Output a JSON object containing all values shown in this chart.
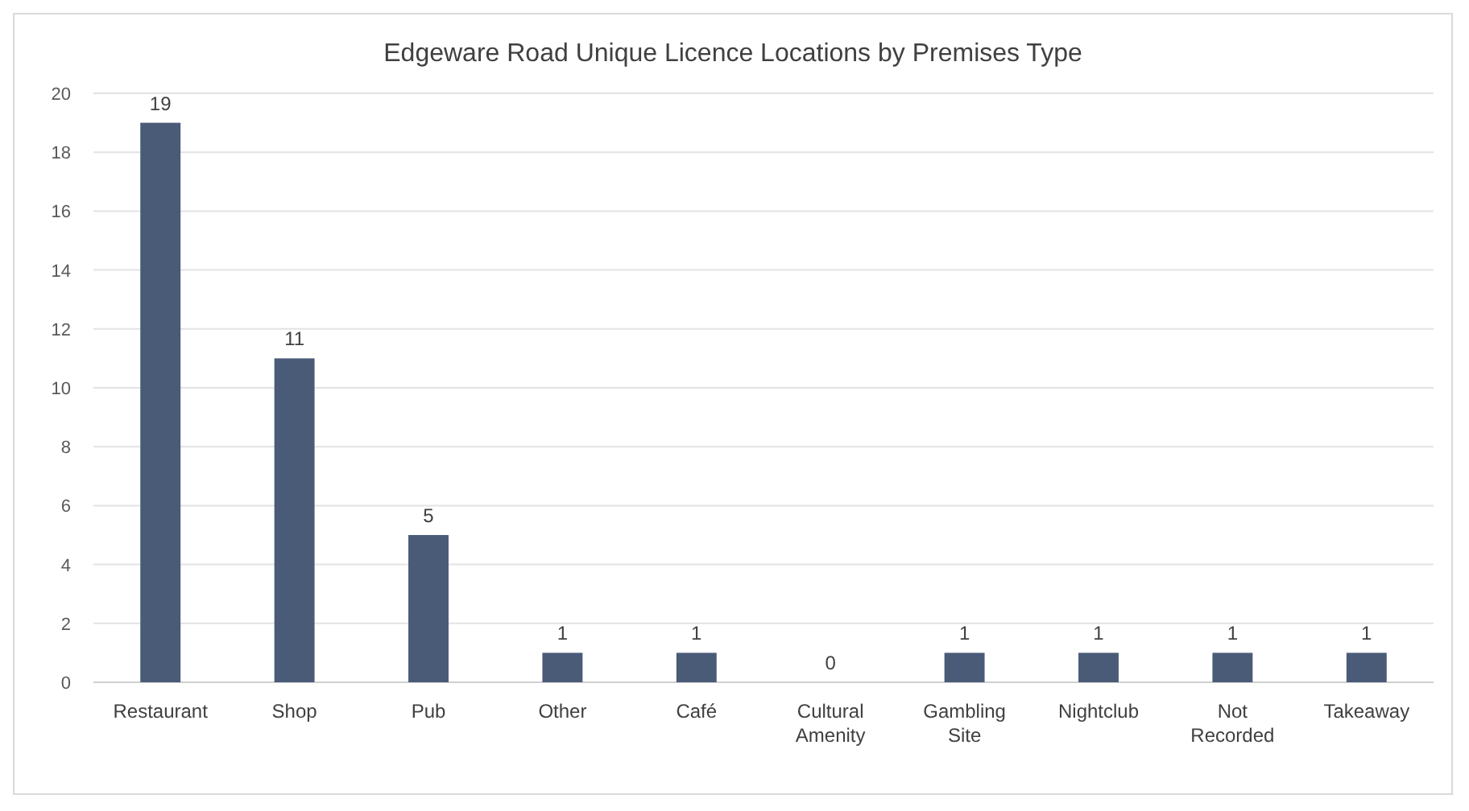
{
  "chart_data": {
    "type": "bar",
    "title": "Edgeware Road Unique Licence Locations by Premises Type",
    "categories": [
      "Restaurant",
      "Shop",
      "Pub",
      "Other",
      "Café",
      "Cultural Amenity",
      "Gambling Site",
      "Nightclub",
      "Not Recorded",
      "Takeaway"
    ],
    "values": [
      19,
      11,
      5,
      1,
      1,
      0,
      1,
      1,
      1,
      1
    ],
    "color": "#4a5b78",
    "ylim": [
      0,
      20
    ],
    "yticks": [
      0,
      2,
      4,
      6,
      8,
      10,
      12,
      14,
      16,
      18,
      20
    ],
    "grid": "y",
    "data_labels": true
  }
}
